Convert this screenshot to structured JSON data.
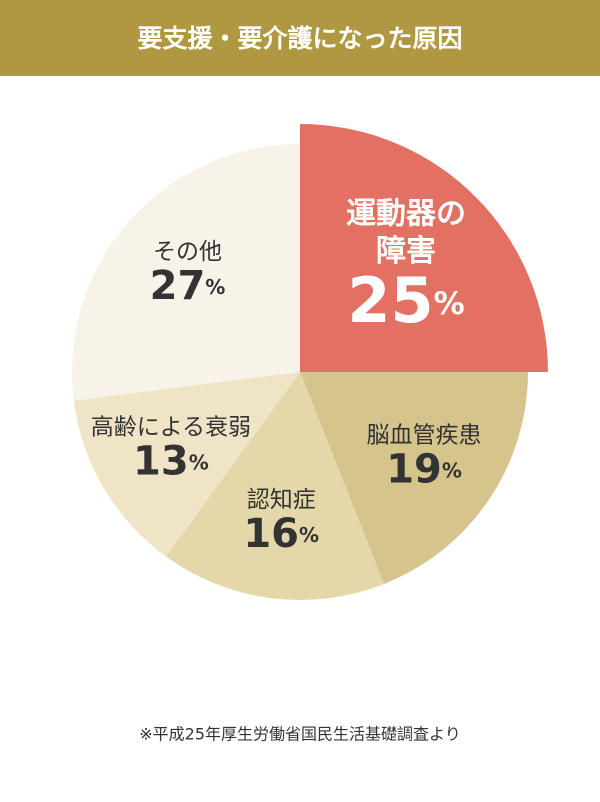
{
  "chart_data": {
    "type": "pie",
    "title": "要支援・要介護になった原因",
    "categories": [
      "運動器の\n障害",
      "脳血管疾患",
      "認知症",
      "高齢による衰弱",
      "その他"
    ],
    "values": [
      25,
      19,
      16,
      13,
      27
    ],
    "value_labels": [
      "25%",
      "19%",
      "16%",
      "13%",
      "27%"
    ],
    "colors": [
      "#e27063",
      "#d5c58c",
      "#e4d8aa",
      "#efe5c6",
      "#f7f3e8"
    ],
    "highlight": 0,
    "note": "※平成25年厚生労働省国民生活基礎調査より"
  }
}
